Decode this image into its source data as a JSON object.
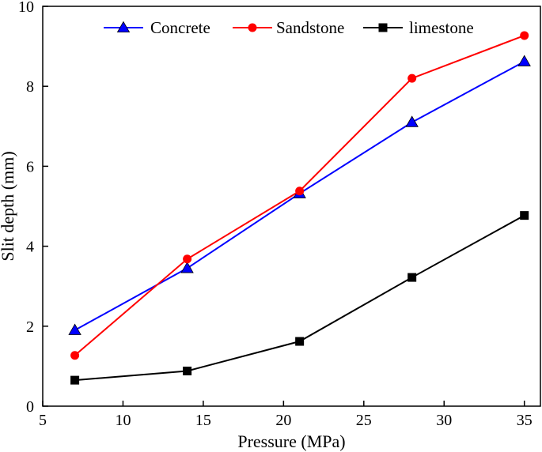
{
  "chart_data": {
    "type": "line",
    "title": "",
    "xlabel": "Pressure (MPa)",
    "ylabel": "Slit depth (mm)",
    "xlim": [
      5,
      36
    ],
    "ylim": [
      0,
      10
    ],
    "xticks": [
      "5",
      "10",
      "15",
      "20",
      "25",
      "30",
      "35"
    ],
    "yticks": [
      "0",
      "2",
      "4",
      "6",
      "8",
      "10"
    ],
    "grid": false,
    "legend_position": "top",
    "series": [
      {
        "name": "Concrete",
        "color": "#0000ff",
        "marker": "triangle",
        "marker_color": "#0000ff",
        "x": [
          7,
          14,
          21,
          28,
          35
        ],
        "y": [
          1.9,
          3.45,
          5.32,
          7.1,
          8.62
        ]
      },
      {
        "name": "Sandstone",
        "color": "#ff0000",
        "marker": "circle",
        "marker_color": "#ff0000",
        "x": [
          7,
          14,
          21,
          28,
          35
        ],
        "y": [
          1.27,
          3.68,
          5.38,
          8.2,
          9.27
        ]
      },
      {
        "name": "limestone",
        "color": "#000000",
        "marker": "square",
        "marker_color": "#000000",
        "x": [
          7,
          14,
          21,
          28,
          35
        ],
        "y": [
          0.65,
          0.88,
          1.62,
          3.22,
          4.77
        ]
      }
    ]
  }
}
